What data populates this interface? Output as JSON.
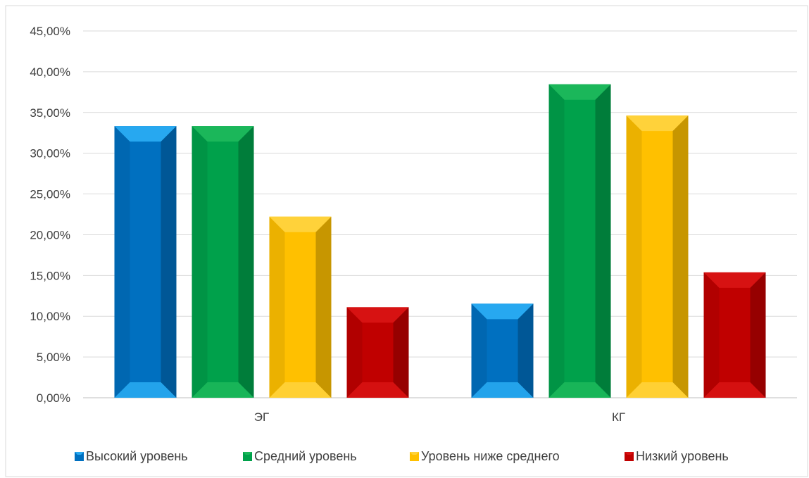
{
  "chart_data": {
    "type": "bar",
    "categories": [
      "ЭГ",
      "КГ"
    ],
    "series": [
      {
        "name": "Высокий уровень",
        "values": [
          33.33,
          11.54
        ],
        "color": "#0070c0",
        "light": "#27a8f0"
      },
      {
        "name": "Средний уровень",
        "values": [
          33.33,
          38.46
        ],
        "color": "#00a14b",
        "light": "#1bb75a"
      },
      {
        "name": "Уровень ниже среднего",
        "values": [
          22.22,
          34.62
        ],
        "color": "#ffc000",
        "light": "#ffd23a"
      },
      {
        "name": "Низкий уровень",
        "values": [
          11.11,
          15.38
        ],
        "color": "#c00000",
        "light": "#d71212"
      }
    ],
    "ylim": [
      0,
      45
    ],
    "ytick_step": 5,
    "ytick_labels": [
      "0,00%",
      "5,00%",
      "10,00%",
      "15,00%",
      "20,00%",
      "25,00%",
      "30,00%",
      "35,00%",
      "40,00%",
      "45,00%"
    ],
    "grid": true,
    "legend_position": "bottom",
    "title": "",
    "xlabel": "",
    "ylabel": ""
  }
}
